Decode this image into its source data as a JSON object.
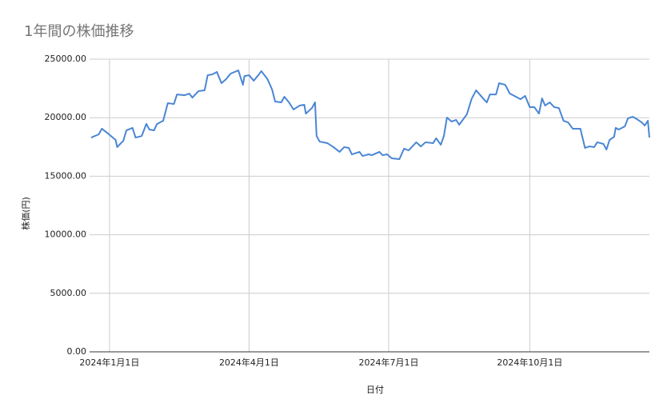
{
  "chart_data": {
    "type": "line",
    "title": "1年間の株価推移",
    "x_label": "日付",
    "y_label": "株価(円)",
    "series": [
      {
        "name": "株価",
        "color": "#4a86d4",
        "x": [
          "2023-12-20",
          "2023-12-25",
          "2023-12-27",
          "2023-12-31",
          "2024-01-05",
          "2024-01-06",
          "2024-01-10",
          "2024-01-12",
          "2024-01-16",
          "2024-01-18",
          "2024-01-22",
          "2024-01-25",
          "2024-01-27",
          "2024-01-30",
          "2024-02-01",
          "2024-02-05",
          "2024-02-08",
          "2024-02-12",
          "2024-02-14",
          "2024-02-19",
          "2024-02-22",
          "2024-02-24",
          "2024-02-28",
          "2024-03-03",
          "2024-03-05",
          "2024-03-08",
          "2024-03-11",
          "2024-03-14",
          "2024-03-17",
          "2024-03-20",
          "2024-03-25",
          "2024-03-28",
          "2024-03-29",
          "2024-04-01",
          "2024-04-04",
          "2024-04-07",
          "2024-04-09",
          "2024-04-13",
          "2024-04-16",
          "2024-04-18",
          "2024-04-22",
          "2024-04-24",
          "2024-04-27",
          "2024-04-30",
          "2024-05-04",
          "2024-05-07",
          "2024-05-08",
          "2024-05-12",
          "2024-05-14",
          "2024-05-15",
          "2024-05-17",
          "2024-05-22",
          "2024-05-26",
          "2024-05-30",
          "2024-06-02",
          "2024-06-05",
          "2024-06-07",
          "2024-06-12",
          "2024-06-14",
          "2024-06-18",
          "2024-06-20",
          "2024-06-25",
          "2024-06-27",
          "2024-06-30",
          "2024-07-03",
          "2024-07-08",
          "2024-07-11",
          "2024-07-14",
          "2024-07-19",
          "2024-07-22",
          "2024-07-25",
          "2024-07-30",
          "2024-08-01",
          "2024-08-04",
          "2024-08-06",
          "2024-08-08",
          "2024-08-11",
          "2024-08-14",
          "2024-08-16",
          "2024-08-21",
          "2024-08-24",
          "2024-08-27",
          "2024-09-01",
          "2024-09-03",
          "2024-09-05",
          "2024-09-09",
          "2024-09-11",
          "2024-09-15",
          "2024-09-18",
          "2024-09-22",
          "2024-09-25",
          "2024-09-28",
          "2024-10-01",
          "2024-10-04",
          "2024-10-07",
          "2024-10-09",
          "2024-10-11",
          "2024-10-14",
          "2024-10-17",
          "2024-10-20",
          "2024-10-23",
          "2024-10-26",
          "2024-10-29",
          "2024-11-03",
          "2024-11-06",
          "2024-11-09",
          "2024-11-12",
          "2024-11-14",
          "2024-11-18",
          "2024-11-20",
          "2024-11-22",
          "2024-11-25",
          "2024-11-26",
          "2024-11-28",
          "2024-12-02",
          "2024-12-04",
          "2024-12-07",
          "2024-12-09",
          "2024-12-13",
          "2024-12-15",
          "2024-12-17",
          "2024-12-18"
        ],
        "values": [
          18300,
          18580,
          19060,
          18650,
          18100,
          17490,
          18030,
          18920,
          19130,
          18300,
          18440,
          19470,
          18990,
          18920,
          19470,
          19740,
          21240,
          21170,
          21990,
          21920,
          22060,
          21720,
          22270,
          22340,
          23630,
          23700,
          23910,
          22950,
          23290,
          23770,
          24040,
          22810,
          23560,
          23630,
          23160,
          23630,
          23980,
          23290,
          22400,
          21380,
          21310,
          21790,
          21310,
          20700,
          21040,
          21110,
          20350,
          20830,
          21310,
          18440,
          17960,
          17830,
          17490,
          17080,
          17490,
          17420,
          16870,
          17080,
          16730,
          16870,
          16800,
          17080,
          16800,
          16870,
          16530,
          16460,
          17350,
          17210,
          17900,
          17550,
          17900,
          17830,
          18240,
          17690,
          18440,
          20010,
          19670,
          19810,
          19400,
          20290,
          21580,
          22340,
          21580,
          21310,
          21990,
          21990,
          22950,
          22810,
          22060,
          21790,
          21580,
          21860,
          20900,
          20900,
          20350,
          21650,
          21040,
          21310,
          20900,
          20830,
          19740,
          19600,
          19060,
          19060,
          17420,
          17550,
          17490,
          17900,
          17760,
          17280,
          18100,
          18370,
          19130,
          18990,
          19260,
          19950,
          20080,
          19950,
          19600,
          19330,
          19740,
          18300
        ]
      }
    ],
    "xlim": [
      "2023-12-19",
      "2024-12-18"
    ],
    "xticks": [
      {
        "value": "2024-01-01",
        "label": "2024年1月1日"
      },
      {
        "value": "2024-04-01",
        "label": "2024年4月1日"
      },
      {
        "value": "2024-07-01",
        "label": "2024年7月1日"
      },
      {
        "value": "2024-10-01",
        "label": "2024年10月1日"
      }
    ],
    "ylim": [
      0,
      25000
    ],
    "yticks": [
      {
        "value": 0,
        "label": "0.00"
      },
      {
        "value": 5000,
        "label": "5000.00"
      },
      {
        "value": 10000,
        "label": "10000.00"
      },
      {
        "value": 15000,
        "label": "15000.00"
      },
      {
        "value": 20000,
        "label": "20000.00"
      },
      {
        "value": 25000,
        "label": "25000.00"
      }
    ],
    "grid": true
  }
}
